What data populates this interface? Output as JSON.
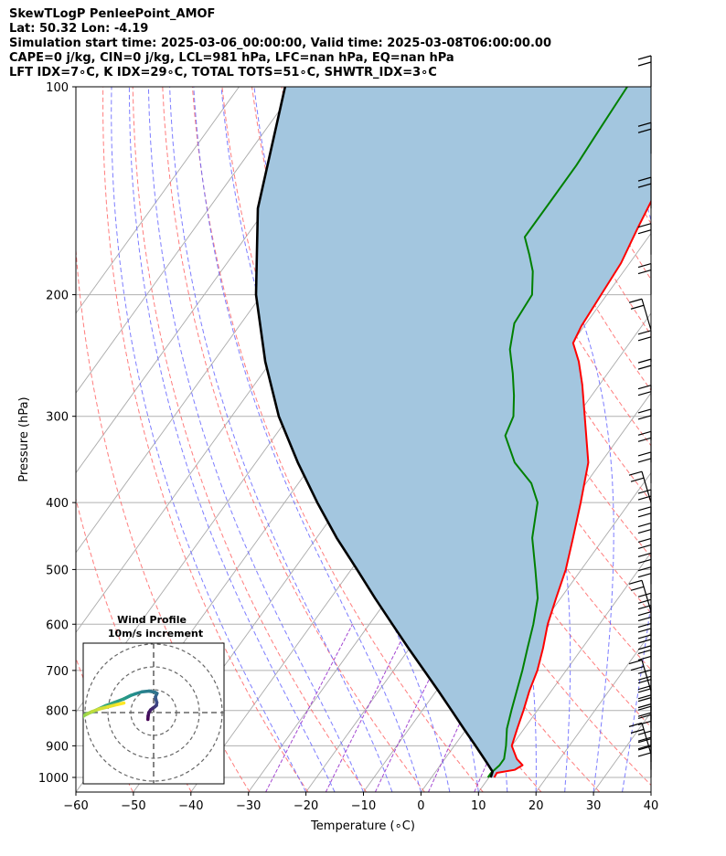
{
  "header": {
    "line1": "SkewTLogP PenleePoint_AMOF",
    "line2": "Lat: 50.32   Lon: -4.19",
    "line3": "Simulation start time: 2025-03-06_00:00:00, Valid time: 2025-03-08T06:00:00.00",
    "line4": "CAPE=0 j/kg, CIN=0 j/kg, LCL=981 hPa, LFC=nan hPa, EQ=nan hPa",
    "line5": "LFT IDX=7∘C, K IDX=29∘C, TOTAL TOTS=51∘C, SHWTR_IDX=3∘C"
  },
  "colors": {
    "temperature": "#ff0000",
    "dewpoint": "#008000",
    "parcel": "#000000",
    "cape_fill": "#a3c6df",
    "isotherm": "#aaaaaa",
    "dry_adiabat": "#ff6666",
    "moist_adiabat": "#6666ff",
    "mixing_ratio": "#9933cc"
  },
  "chart_data": [
    {
      "type": "line",
      "subtype": "skew-T log-P diagram",
      "xlabel": "Temperature (∘C)",
      "ylabel": "Pressure (hPa)",
      "xlim": [
        -60,
        40
      ],
      "ylim": [
        1050,
        100
      ],
      "yscale": "log",
      "x_ticks": [
        -60,
        -50,
        -40,
        -30,
        -20,
        -10,
        0,
        10,
        20,
        30,
        40
      ],
      "x_tick_labels": [
        "−60",
        "−50",
        "−40",
        "−30",
        "−20",
        "−10",
        "0",
        "10",
        "20",
        "30",
        "40"
      ],
      "y_ticks": [
        1000,
        900,
        800,
        700,
        600,
        500,
        400,
        300,
        200,
        100
      ],
      "y_tick_labels": [
        "1000",
        "900",
        "800",
        "700",
        "600",
        "500",
        "400",
        "300",
        "200",
        "100"
      ],
      "grid": true,
      "series": [
        {
          "role": "temperature",
          "points": [
            [
              1000,
              10.9
            ],
            [
              985,
              10.8
            ],
            [
              975,
              13.5
            ],
            [
              960,
              14.3
            ],
            [
              940,
              12.5
            ],
            [
              900,
              10.0
            ],
            [
              850,
              8.8
            ],
            [
              800,
              7.6
            ],
            [
              750,
              6.2
            ],
            [
              700,
              5.0
            ],
            [
              650,
              3.2
            ],
            [
              600,
              1.0
            ],
            [
              550,
              -0.8
            ],
            [
              500,
              -2.7
            ],
            [
              450,
              -5.4
            ],
            [
              400,
              -8.5
            ],
            [
              350,
              -12.2
            ],
            [
              300,
              -18.6
            ],
            [
              270,
              -23.0
            ],
            [
              250,
              -26.5
            ],
            [
              235,
              -29.8
            ],
            [
              222,
              -30.5
            ],
            [
              200,
              -31.0
            ],
            [
              180,
              -31.5
            ],
            [
              160,
              -33.0
            ],
            [
              140,
              -34.5
            ],
            [
              125,
              -35.5
            ],
            [
              112,
              -35.5
            ],
            [
              100,
              -36.7
            ]
          ]
        },
        {
          "role": "dewpoint",
          "points": [
            [
              1000,
              9.8
            ],
            [
              985,
              9.8
            ],
            [
              960,
              10.3
            ],
            [
              940,
              10.3
            ],
            [
              900,
              9.0
            ],
            [
              850,
              7.0
            ],
            [
              800,
              5.5
            ],
            [
              750,
              4.0
            ],
            [
              700,
              2.4
            ],
            [
              650,
              0.5
            ],
            [
              600,
              -1.5
            ],
            [
              550,
              -4.0
            ],
            [
              500,
              -8.0
            ],
            [
              450,
              -12.5
            ],
            [
              400,
              -16.0
            ],
            [
              375,
              -19.5
            ],
            [
              350,
              -25.0
            ],
            [
              320,
              -30.0
            ],
            [
              300,
              -31.0
            ],
            [
              280,
              -33.5
            ],
            [
              260,
              -36.5
            ],
            [
              240,
              -40.0
            ],
            [
              220,
              -42.5
            ],
            [
              200,
              -43.0
            ],
            [
              185,
              -45.8
            ],
            [
              175,
              -48.5
            ],
            [
              165,
              -51.5
            ],
            [
              145,
              -51.5
            ],
            [
              130,
              -51.5
            ],
            [
              115,
              -52.0
            ],
            [
              100,
              -52.5
            ]
          ]
        },
        {
          "role": "parcel",
          "points": [
            [
              1000,
              10.3
            ],
            [
              981,
              9.9
            ],
            [
              950,
              7.6
            ],
            [
              900,
              3.7
            ],
            [
              850,
              -0.5
            ],
            [
              800,
              -4.9
            ],
            [
              750,
              -9.6
            ],
            [
              700,
              -14.7
            ],
            [
              650,
              -20.2
            ],
            [
              600,
              -26.0
            ],
            [
              550,
              -32.3
            ],
            [
              500,
              -39.0
            ],
            [
              450,
              -46.5
            ],
            [
              400,
              -54.3
            ],
            [
              350,
              -62.7
            ],
            [
              300,
              -71.8
            ],
            [
              250,
              -81.0
            ],
            [
              200,
              -91.0
            ],
            [
              150,
              -101.5
            ],
            [
              100,
              -112.0
            ]
          ]
        }
      ],
      "background_lines": {
        "isotherms_c": [
          -120,
          -110,
          -100,
          -90,
          -80,
          -70,
          -60,
          -50,
          -40,
          -30,
          -20,
          -10,
          0,
          10,
          20,
          30,
          40
        ],
        "dry_adiabats_k": [
          220,
          230,
          240,
          250,
          260,
          270,
          280,
          290,
          300,
          310,
          320,
          330,
          340,
          350,
          360,
          370,
          380,
          390,
          400,
          410,
          420,
          430
        ],
        "moist_adiabats_c": [
          -20,
          -15,
          -10,
          -5,
          0,
          5,
          10,
          15,
          20,
          25,
          30,
          35,
          40
        ],
        "mixing_ratio_lines": [
          0.4,
          1,
          2,
          4,
          7
        ]
      },
      "wind_barbs": "present along right edge, 1000-100 hPa"
    },
    {
      "type": "line",
      "subtype": "hodograph",
      "title": "Wind Profile",
      "subtitle": "10m/s increment",
      "rings": [
        10,
        20,
        30
      ],
      "colormap": "viridis by height",
      "points_uv": [
        [
          -2.5,
          -3.0
        ],
        [
          -2.4,
          -1.5
        ],
        [
          -2.1,
          0.0
        ],
        [
          -1.3,
          1.2
        ],
        [
          -0.4,
          1.9
        ],
        [
          0.5,
          2.5
        ],
        [
          1.2,
          3.1
        ],
        [
          1.4,
          4.4
        ],
        [
          1.0,
          5.7
        ],
        [
          0.8,
          6.8
        ],
        [
          1.2,
          7.8
        ],
        [
          1.5,
          8.4
        ],
        [
          0.6,
          8.9
        ],
        [
          -2.0,
          9.4
        ],
        [
          -5.0,
          9.1
        ],
        [
          -8.0,
          8.2
        ],
        [
          -10.0,
          7.5
        ],
        [
          -13.0,
          6.0
        ],
        [
          -17.0,
          4.5
        ],
        [
          -21.0,
          3.0
        ],
        [
          -24.0,
          1.6
        ],
        [
          -26.5,
          0.4
        ],
        [
          -29.5,
          -0.6
        ],
        [
          -31.0,
          -1.8
        ],
        [
          -32.5,
          -3.0
        ],
        [
          -32.0,
          -2.6
        ],
        [
          -31.0,
          -1.6
        ],
        [
          -29.0,
          -0.6
        ],
        [
          -27.0,
          0.4
        ],
        [
          -24.0,
          1.5
        ],
        [
          -20.0,
          2.5
        ],
        [
          -16.0,
          3.5
        ],
        [
          -13.0,
          4.2
        ]
      ]
    }
  ]
}
